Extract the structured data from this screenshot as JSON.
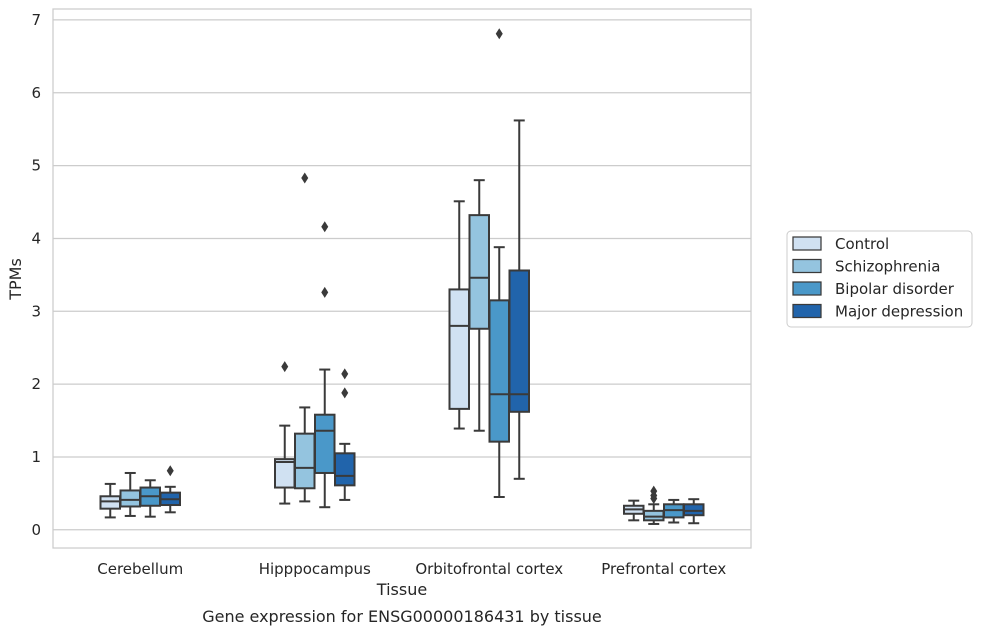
{
  "caption": "Gene expression for ENSG00000186431 by tissue",
  "colors": {
    "Control": "#d0e1f2",
    "Schizophrenia": "#94c4df",
    "Bipolar disorder": "#4a98c9",
    "Major depression": "#2164ab",
    "grid": "#cccccc",
    "line": "#3a3a3a"
  },
  "chart_data": {
    "type": "box",
    "xlabel": "Tissue",
    "ylabel": "TPMs",
    "ylim": [
      -0.25,
      7.15
    ],
    "yticks": [
      0,
      1,
      2,
      3,
      4,
      5,
      6,
      7
    ],
    "categories": [
      "Cerebellum",
      "Hipppocampus",
      "Orbitofrontal cortex",
      "Prefrontal cortex"
    ],
    "legend": {
      "position": "center-right",
      "entries": [
        "Control",
        "Schizophrenia",
        "Bipolar disorder",
        "Major depression"
      ]
    },
    "grid": "horizontal",
    "series": [
      {
        "name": "Control",
        "boxes": [
          {
            "whislo": 0.17,
            "q1": 0.29,
            "med": 0.39,
            "q3": 0.46,
            "whishi": 0.63,
            "fliers": []
          },
          {
            "whislo": 0.36,
            "q1": 0.58,
            "med": 0.93,
            "q3": 0.97,
            "whishi": 1.43,
            "fliers": [
              2.24
            ]
          },
          {
            "whislo": 1.39,
            "q1": 1.66,
            "med": 2.8,
            "q3": 3.3,
            "whishi": 4.51,
            "fliers": []
          },
          {
            "whislo": 0.13,
            "q1": 0.22,
            "med": 0.28,
            "q3": 0.33,
            "whishi": 0.4,
            "fliers": []
          }
        ]
      },
      {
        "name": "Schizophrenia",
        "boxes": [
          {
            "whislo": 0.19,
            "q1": 0.32,
            "med": 0.41,
            "q3": 0.54,
            "whishi": 0.78,
            "fliers": []
          },
          {
            "whislo": 0.39,
            "q1": 0.57,
            "med": 0.85,
            "q3": 1.32,
            "whishi": 1.68,
            "fliers": [
              4.83
            ]
          },
          {
            "whislo": 1.36,
            "q1": 2.76,
            "med": 3.46,
            "q3": 4.32,
            "whishi": 4.8,
            "fliers": []
          },
          {
            "whislo": 0.08,
            "q1": 0.13,
            "med": 0.18,
            "q3": 0.26,
            "whishi": 0.35,
            "fliers": [
              0.53,
              0.47,
              0.43
            ]
          }
        ]
      },
      {
        "name": "Bipolar disorder",
        "boxes": [
          {
            "whislo": 0.18,
            "q1": 0.33,
            "med": 0.46,
            "q3": 0.58,
            "whishi": 0.68,
            "fliers": []
          },
          {
            "whislo": 0.31,
            "q1": 0.78,
            "med": 1.36,
            "q3": 1.58,
            "whishi": 2.2,
            "fliers": [
              3.26,
              4.16
            ]
          },
          {
            "whislo": 0.45,
            "q1": 1.21,
            "med": 1.86,
            "q3": 3.15,
            "whishi": 3.88,
            "fliers": [
              6.81
            ]
          },
          {
            "whislo": 0.1,
            "q1": 0.17,
            "med": 0.27,
            "q3": 0.35,
            "whishi": 0.41,
            "fliers": []
          }
        ]
      },
      {
        "name": "Major depression",
        "boxes": [
          {
            "whislo": 0.24,
            "q1": 0.34,
            "med": 0.42,
            "q3": 0.51,
            "whishi": 0.59,
            "fliers": [
              0.81
            ]
          },
          {
            "whislo": 0.41,
            "q1": 0.61,
            "med": 0.74,
            "q3": 1.05,
            "whishi": 1.18,
            "fliers": [
              1.88,
              2.14
            ]
          },
          {
            "whislo": 0.7,
            "q1": 1.62,
            "med": 1.86,
            "q3": 3.56,
            "whishi": 5.62,
            "fliers": []
          },
          {
            "whislo": 0.09,
            "q1": 0.2,
            "med": 0.26,
            "q3": 0.35,
            "whishi": 0.42,
            "fliers": []
          }
        ]
      }
    ]
  }
}
